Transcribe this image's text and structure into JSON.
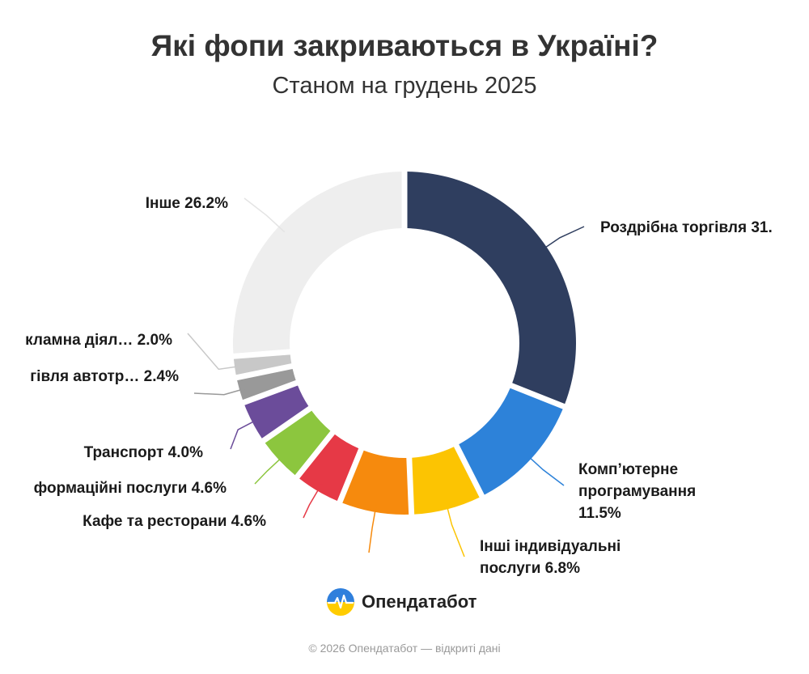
{
  "chart_data": {
    "type": "pie",
    "title": "Які фопи закриваються в Україні?",
    "subtitle": "Станом на грудень 2025",
    "slices": [
      {
        "label": "Роздрібна торгівля 31.",
        "value": 31.0,
        "color": "#2f3e5f"
      },
      {
        "label": "Комп’ютерне програмування 11.5%",
        "lines": [
          "Комп’ютерне",
          "програмування",
          "11.5%"
        ],
        "value": 11.5,
        "color": "#2d82d9"
      },
      {
        "label": "Інші індивідуальні послуги 6.8%",
        "lines": [
          "Інші індивідуальні",
          "послуги 6.8%"
        ],
        "value": 6.8,
        "color": "#fcc402"
      },
      {
        "label": "",
        "value": 6.8,
        "color": "#f68a0d"
      },
      {
        "label": "Кафе та ресторани 4.6%",
        "value": 4.6,
        "color": "#e63946"
      },
      {
        "label": "формаційні послуги 4.6%",
        "value": 4.6,
        "color": "#8cc63e"
      },
      {
        "label": "Транспорт 4.0%",
        "value": 4.0,
        "color": "#6b4c9a"
      },
      {
        "label": "гівля автотр… 2.4%",
        "value": 2.4,
        "color": "#999999"
      },
      {
        "label": "кламна діял… 2.0%",
        "value": 2.0,
        "color": "#c8c8c8"
      },
      {
        "label": "Інше 26.2%",
        "value": 26.2,
        "color": "#eeeeee"
      }
    ]
  },
  "brand": {
    "name": "Опендатабот"
  },
  "footer": "© 2026 Опендатабот — відкриті дані"
}
